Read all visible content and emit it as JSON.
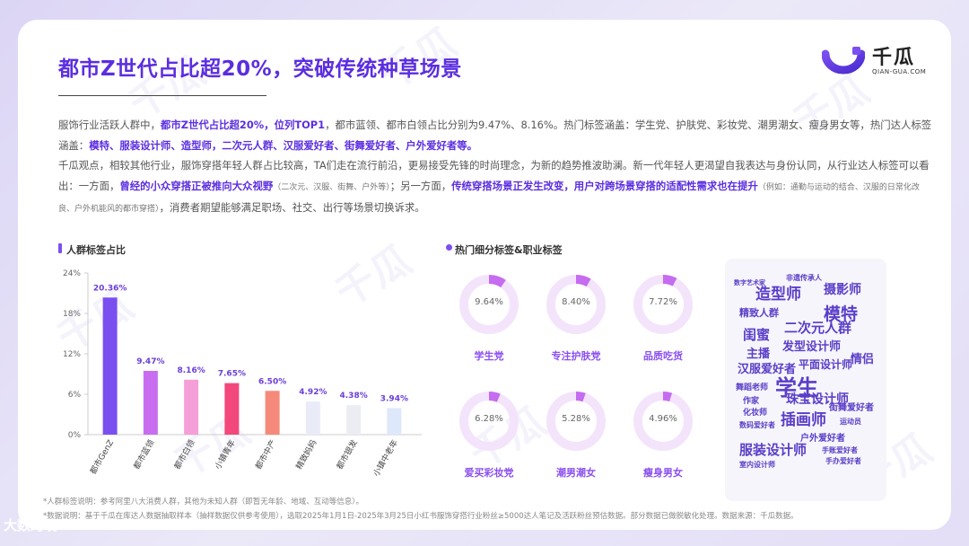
{
  "title": "都市Z世代占比超20%，突破传统种草场景",
  "logo": {
    "name": "千瓜",
    "sub": "QIAN-GUA.COM",
    "icon": "qiangua-logo-mark"
  },
  "watermark": {
    "text": "千瓜",
    "sub": "QIAN-GUA.COM"
  },
  "paragraph1": {
    "s1": "服饰行业活跃人群中，",
    "s2": "都市Z世代占比超20%，位列TOP1",
    "s3": "，都市蓝领、都市白领占比分别为9.47%、8.16%。热门标签涵盖：学生党、护肤党、彩妆党、潮男潮女、瘦身男女等，热门达人标签涵盖：",
    "s4": "模特、服装设计师、造型师，二次元人群、汉服爱好者、街舞爱好者、户外爱好者等。"
  },
  "paragraph2": {
    "s1": "千瓜观点，相较其他行业，服饰穿搭年轻人群占比较高，TA们走在流行前沿，更易接受先锋的时尚理念，为新的趋势推波助澜。新一代年轻人更渴望自我表达与身份认同，从行业达人标签可以看出：一方面，",
    "s2": "曾经的小众穿搭正被推向大众视野",
    "s3": "（二次元、汉服、街舞、户外等）",
    "s4": "；另一方面，",
    "s5": "传统穿搭场景正发生改变，用户对跨场景穿搭的适配性需求也在提升",
    "s6": "（例如：通勤与运动的结合、汉服的日常化改良、户外机能风的都市穿搭）",
    "s7": "，消费者期望能够满足职场、社交、出行等场景切换诉求。"
  },
  "left_section_title": "人群标签占比",
  "right_section_title": "热门细分标签&职业标签",
  "chart_data": [
    {
      "type": "bar",
      "title": "人群标签占比",
      "categories": [
        "都市GenZ",
        "都市蓝领",
        "都市白领",
        "小镇青年",
        "都市中产",
        "精致妈妈",
        "都市银发",
        "小镇中老年"
      ],
      "values": [
        20.36,
        9.47,
        8.16,
        7.65,
        6.5,
        4.92,
        4.38,
        3.94
      ],
      "value_labels": [
        "20.36%",
        "9.47%",
        "8.16%",
        "7.65%",
        "6.50%",
        "4.92%",
        "4.38%",
        "3.94%"
      ],
      "colors": [
        "#7a4ff0",
        "#c96df0",
        "#f59fd8",
        "#f2487c",
        "#f58a7a",
        "#e9ecf8",
        "#ebedf2",
        "#dde8fb"
      ],
      "ylim": [
        0,
        24
      ],
      "yticks": [
        "0%",
        "6%",
        "12%",
        "18%",
        "24%"
      ],
      "ytick_values": [
        0,
        6,
        12,
        18,
        24
      ]
    },
    {
      "type": "pie",
      "title": "热门细分标签&职业标签",
      "categories": [
        "学生党",
        "专注护肤党",
        "品质吃货",
        "爱买彩妆党",
        "潮男潮女",
        "瘦身男女"
      ],
      "values": [
        9.64,
        8.4,
        7.72,
        6.28,
        5.28,
        4.96
      ],
      "value_labels": [
        "9.64%",
        "8.40%",
        "7.72%",
        "6.28%",
        "5.28%",
        "4.96%"
      ]
    }
  ],
  "colors": {
    "accent": "#5b2ee0",
    "ring_bg": "#f3e4fb",
    "ring_fill": "#c56cf0"
  },
  "word_cloud": [
    "数字艺术家",
    "非遗传承人",
    "造型师",
    "摄影师",
    "模特",
    "精致人群",
    "二次元人群",
    "闺蜜",
    "发型设计师",
    "主播",
    "情侣",
    "汉服爱好者",
    "平面设计师",
    "舞蹈老师",
    "学生",
    "作家",
    "珠宝设计师",
    "化妆师",
    "街舞爱好者",
    "数码爱好者",
    "插画师",
    "运动员",
    "户外爱好者",
    "服装设计师",
    "手账爱好者",
    "手办爱好者",
    "室内设计师"
  ],
  "footnote1": "*人群标签说明：参考阿里八大消费人群，其他为未知人群（即暂无年龄、地域、互动等信息）。",
  "footnote2": "*数据说明：基于千瓜在库达人数据抽取样本（抽样数据仅供参考使用），选取2025年1月1日-2025年3月25日小红书服饰穿搭行业粉丝≥5000达人笔记及活跃粉丝预估数据。部分数据已做脱敏化处理。数据来源：千瓜数据。",
  "corner_text": "大数跨境"
}
